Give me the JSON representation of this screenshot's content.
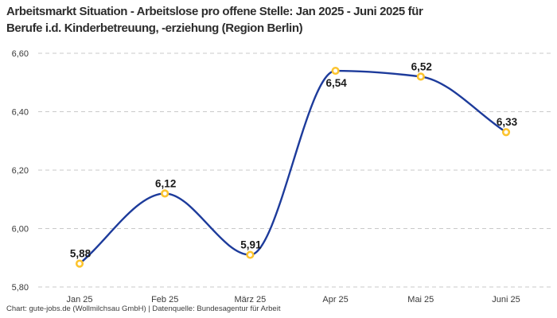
{
  "header": {
    "title_line1": "Arbeitsmarkt Situation - Arbeitslose pro offene Stelle: Jan 2025 - Juni 2025 für",
    "title_line2": "Berufe i.d. Kinderbetreuung, -erziehung (Region Berlin)"
  },
  "footer": {
    "credit": "Chart: gute-jobs.de (Wollmilchsau GmbH) | Datenquelle: Bundesagentur für Arbeit"
  },
  "chart_data": {
    "type": "line",
    "title": "Arbeitsmarkt Situation - Arbeitslose pro offene Stelle: Jan 2025 - Juni 2025 für Berufe i.d. Kinderbetreuung, -erziehung (Region Berlin)",
    "categories": [
      "Jan 25",
      "Feb 25",
      "März 25",
      "Apr 25",
      "Mai 25",
      "Juni 25"
    ],
    "values": [
      5.88,
      6.12,
      5.91,
      6.54,
      6.52,
      6.33
    ],
    "point_labels": [
      "5,88",
      "6,12",
      "5,91",
      "6,54",
      "6,52",
      "6,33"
    ],
    "point_label_positions": [
      "above",
      "above",
      "above",
      "below",
      "above",
      "above"
    ],
    "y_ticks": [
      {
        "value": 5.8,
        "label": "5,80"
      },
      {
        "value": 6.0,
        "label": "6,00"
      },
      {
        "value": 6.2,
        "label": "6,20"
      },
      {
        "value": 6.4,
        "label": "6,40"
      },
      {
        "value": 6.6,
        "label": "6,60"
      }
    ],
    "ylim": [
      5.8,
      6.6
    ],
    "xlabel": "",
    "ylabel": "",
    "grid": "dashed-horizontal",
    "legend": "none",
    "curve": "monotone",
    "colors": {
      "line": "#1d3b9b",
      "marker_ring": "#fcc42f",
      "marker_fill": "#ffffff",
      "grid": "#c9c9c9",
      "point_label": "#1a1a1a",
      "tick_label": "#3a3a3a"
    }
  }
}
